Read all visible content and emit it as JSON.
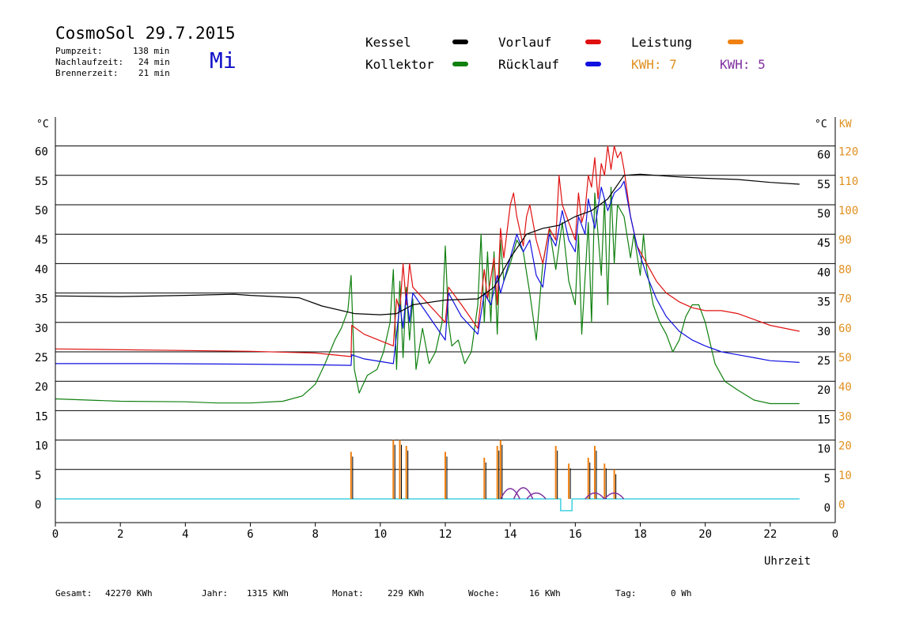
{
  "header": {
    "title": "CosmoSol 29.7.2015",
    "weekday": "Mi",
    "stats": [
      {
        "label": "Pumpzeit:",
        "value": "138 min"
      },
      {
        "label": "Nachlaufzeit:",
        "value": "24 min"
      },
      {
        "label": "Brennerzeit:",
        "value": "21 min"
      }
    ]
  },
  "legend": {
    "kessel": {
      "label": "Kessel",
      "color": "#000000"
    },
    "vorlauf": {
      "label": "Vorlauf",
      "color": "#e01010"
    },
    "leistung": {
      "label": "Leistung",
      "color": "#f08010"
    },
    "kollektor": {
      "label": "Kollektor",
      "color": "#108010"
    },
    "ruecklauf": {
      "label": "Rücklauf",
      "color": "#1010e0"
    },
    "kwh1": {
      "label": "KWH: 7",
      "color": "#e09020"
    },
    "kwh2": {
      "label": "KWH: 5",
      "color": "#8030a0"
    }
  },
  "footer": [
    {
      "label": "Gesamt:",
      "value": "42270 KWh"
    },
    {
      "label": "Jahr:",
      "value": "1315 KWh"
    },
    {
      "label": "Monat:",
      "value": "229 KWh"
    },
    {
      "label": "Woche:",
      "value": "16 KWh"
    },
    {
      "label": "Tag:",
      "value": "0 Wh"
    }
  ],
  "chart_data": {
    "type": "line",
    "xlabel": "Uhrzeit",
    "ylabel_left": "°C",
    "ylabel_right_1": "°C",
    "ylabel_right_2": "KW",
    "xlim": [
      0,
      24
    ],
    "ylim": [
      -4,
      65
    ],
    "x_ticks": [
      0,
      2,
      4,
      6,
      8,
      10,
      12,
      14,
      16,
      18,
      20,
      22
    ],
    "x_end_tick": "0",
    "y_ticks": [
      0,
      5,
      10,
      15,
      20,
      25,
      30,
      35,
      40,
      45,
      50,
      55,
      60
    ],
    "kw_ticks": [
      0,
      10,
      20,
      30,
      40,
      50,
      60,
      70,
      80,
      90,
      100,
      110,
      120
    ],
    "grid": true,
    "series": [
      {
        "key": "kollektor",
        "color": "#108010",
        "points": [
          [
            0,
            17
          ],
          [
            2,
            16.6
          ],
          [
            4,
            16.5
          ],
          [
            5,
            16.3
          ],
          [
            6,
            16.3
          ],
          [
            7,
            16.6
          ],
          [
            7.6,
            17.5
          ],
          [
            8,
            19.5
          ],
          [
            8.3,
            23
          ],
          [
            8.6,
            27
          ],
          [
            8.8,
            29
          ],
          [
            9.0,
            32
          ],
          [
            9.1,
            38
          ],
          [
            9.2,
            22
          ],
          [
            9.35,
            18
          ],
          [
            9.6,
            21
          ],
          [
            9.9,
            22
          ],
          [
            10.1,
            25
          ],
          [
            10.3,
            30
          ],
          [
            10.4,
            39
          ],
          [
            10.5,
            22
          ],
          [
            10.6,
            37
          ],
          [
            10.7,
            24
          ],
          [
            10.8,
            36
          ],
          [
            10.9,
            27
          ],
          [
            11.0,
            34
          ],
          [
            11.1,
            22
          ],
          [
            11.3,
            29
          ],
          [
            11.5,
            23
          ],
          [
            11.7,
            25
          ],
          [
            11.9,
            30
          ],
          [
            12.0,
            43
          ],
          [
            12.1,
            30
          ],
          [
            12.2,
            26
          ],
          [
            12.4,
            27
          ],
          [
            12.6,
            23
          ],
          [
            12.8,
            25
          ],
          [
            13.0,
            33
          ],
          [
            13.1,
            45
          ],
          [
            13.2,
            30
          ],
          [
            13.3,
            42
          ],
          [
            13.4,
            30
          ],
          [
            13.5,
            42
          ],
          [
            13.6,
            28
          ],
          [
            13.7,
            44
          ],
          [
            13.8,
            37
          ],
          [
            14.0,
            40
          ],
          [
            14.2,
            44
          ],
          [
            14.4,
            42
          ],
          [
            14.6,
            35
          ],
          [
            14.8,
            27
          ],
          [
            15.0,
            40
          ],
          [
            15.2,
            46
          ],
          [
            15.4,
            39
          ],
          [
            15.6,
            47
          ],
          [
            15.8,
            37
          ],
          [
            16.0,
            33
          ],
          [
            16.1,
            45
          ],
          [
            16.2,
            28
          ],
          [
            16.4,
            47
          ],
          [
            16.5,
            30
          ],
          [
            16.6,
            52
          ],
          [
            16.8,
            38
          ],
          [
            16.9,
            51
          ],
          [
            17.0,
            33
          ],
          [
            17.1,
            53
          ],
          [
            17.2,
            40
          ],
          [
            17.3,
            50
          ],
          [
            17.5,
            48
          ],
          [
            17.7,
            41
          ],
          [
            17.8,
            45
          ],
          [
            18.0,
            38
          ],
          [
            18.1,
            45
          ],
          [
            18.2,
            39
          ],
          [
            18.4,
            33
          ],
          [
            18.6,
            30
          ],
          [
            18.8,
            28
          ],
          [
            19.0,
            25
          ],
          [
            19.2,
            27
          ],
          [
            19.4,
            31
          ],
          [
            19.6,
            33
          ],
          [
            19.8,
            33
          ],
          [
            20.0,
            30
          ],
          [
            20.3,
            23
          ],
          [
            20.6,
            20
          ],
          [
            21.0,
            18.5
          ],
          [
            21.5,
            16.8
          ],
          [
            22,
            16.2
          ],
          [
            22.9,
            16.2
          ]
        ]
      },
      {
        "key": "vorlauf",
        "color": "#e01010",
        "points": [
          [
            0,
            25.5
          ],
          [
            3,
            25.3
          ],
          [
            6,
            25.1
          ],
          [
            8,
            24.8
          ],
          [
            9.1,
            24.2
          ],
          [
            9.12,
            29.5
          ],
          [
            9.5,
            28
          ],
          [
            10.4,
            26
          ],
          [
            10.5,
            34
          ],
          [
            10.6,
            32
          ],
          [
            10.7,
            40
          ],
          [
            10.8,
            33
          ],
          [
            10.9,
            40
          ],
          [
            11.0,
            36
          ],
          [
            11.5,
            33
          ],
          [
            12.0,
            30
          ],
          [
            12.1,
            36
          ],
          [
            12.5,
            33
          ],
          [
            13.0,
            29
          ],
          [
            13.2,
            39
          ],
          [
            13.3,
            34
          ],
          [
            13.5,
            41
          ],
          [
            13.6,
            33
          ],
          [
            13.7,
            46
          ],
          [
            13.8,
            41
          ],
          [
            14.0,
            50
          ],
          [
            14.1,
            52
          ],
          [
            14.2,
            48
          ],
          [
            14.4,
            43
          ],
          [
            14.5,
            48
          ],
          [
            14.6,
            50
          ],
          [
            14.8,
            44
          ],
          [
            15.0,
            40
          ],
          [
            15.2,
            46
          ],
          [
            15.4,
            44
          ],
          [
            15.5,
            55
          ],
          [
            15.6,
            50
          ],
          [
            15.8,
            47
          ],
          [
            16.0,
            44
          ],
          [
            16.1,
            52
          ],
          [
            16.2,
            47
          ],
          [
            16.3,
            49
          ],
          [
            16.4,
            55
          ],
          [
            16.5,
            53
          ],
          [
            16.6,
            58
          ],
          [
            16.7,
            51
          ],
          [
            16.8,
            57
          ],
          [
            16.9,
            55
          ],
          [
            17.0,
            60
          ],
          [
            17.1,
            56
          ],
          [
            17.2,
            60
          ],
          [
            17.3,
            58
          ],
          [
            17.4,
            59
          ],
          [
            17.5,
            56
          ],
          [
            17.7,
            48
          ],
          [
            17.9,
            43
          ],
          [
            18.2,
            40
          ],
          [
            18.5,
            37
          ],
          [
            18.8,
            35
          ],
          [
            19.2,
            33.5
          ],
          [
            19.6,
            32.5
          ],
          [
            20,
            32
          ],
          [
            20.5,
            32
          ],
          [
            21,
            31.5
          ],
          [
            21.5,
            30.5
          ],
          [
            22,
            29.5
          ],
          [
            22.9,
            28.5
          ]
        ]
      },
      {
        "key": "ruecklauf",
        "color": "#1010e0",
        "points": [
          [
            0,
            23
          ],
          [
            3,
            23
          ],
          [
            6,
            22.9
          ],
          [
            8,
            22.8
          ],
          [
            9.1,
            22.7
          ],
          [
            9.12,
            24.5
          ],
          [
            9.5,
            23.8
          ],
          [
            10.4,
            23
          ],
          [
            10.5,
            28
          ],
          [
            10.6,
            33
          ],
          [
            10.7,
            29
          ],
          [
            10.8,
            35
          ],
          [
            10.9,
            30
          ],
          [
            11.0,
            35
          ],
          [
            11.5,
            31
          ],
          [
            12.0,
            27
          ],
          [
            12.1,
            35
          ],
          [
            12.5,
            31
          ],
          [
            13.0,
            28
          ],
          [
            13.2,
            35
          ],
          [
            13.4,
            33
          ],
          [
            13.6,
            38
          ],
          [
            13.7,
            35
          ],
          [
            14.0,
            41
          ],
          [
            14.2,
            45
          ],
          [
            14.4,
            42
          ],
          [
            14.6,
            44
          ],
          [
            14.8,
            38
          ],
          [
            15.0,
            36
          ],
          [
            15.2,
            45
          ],
          [
            15.4,
            43
          ],
          [
            15.6,
            49
          ],
          [
            15.8,
            44
          ],
          [
            16.0,
            42
          ],
          [
            16.1,
            48
          ],
          [
            16.3,
            45
          ],
          [
            16.4,
            51
          ],
          [
            16.6,
            46
          ],
          [
            16.8,
            53
          ],
          [
            17.0,
            49
          ],
          [
            17.2,
            52
          ],
          [
            17.4,
            53
          ],
          [
            17.5,
            54
          ],
          [
            17.7,
            48
          ],
          [
            17.9,
            43
          ],
          [
            18.2,
            38
          ],
          [
            18.5,
            34
          ],
          [
            18.8,
            31
          ],
          [
            19.2,
            28.5
          ],
          [
            19.6,
            27
          ],
          [
            20,
            26
          ],
          [
            20.5,
            25
          ],
          [
            21,
            24.5
          ],
          [
            21.5,
            24
          ],
          [
            22,
            23.5
          ],
          [
            22.9,
            23.2
          ]
        ]
      },
      {
        "key": "kessel",
        "color": "#000000",
        "points": [
          [
            0,
            34.5
          ],
          [
            2,
            34.4
          ],
          [
            4,
            34.6
          ],
          [
            5.5,
            34.8
          ],
          [
            6,
            34.6
          ],
          [
            7.5,
            34.2
          ],
          [
            8.0,
            33.2
          ],
          [
            8.2,
            32.8
          ],
          [
            9.2,
            31.5
          ],
          [
            10,
            31.3
          ],
          [
            10.5,
            31.5
          ],
          [
            11,
            33
          ],
          [
            12,
            33.8
          ],
          [
            13,
            34
          ],
          [
            13.5,
            36
          ],
          [
            14,
            41
          ],
          [
            14.5,
            45
          ],
          [
            15,
            46
          ],
          [
            15.5,
            46.5
          ],
          [
            16,
            48
          ],
          [
            16.5,
            49
          ],
          [
            17,
            51
          ],
          [
            17.5,
            55
          ],
          [
            18,
            55.2
          ],
          [
            19,
            54.8
          ],
          [
            20,
            54.5
          ],
          [
            21,
            54.3
          ],
          [
            22,
            53.8
          ],
          [
            22.9,
            53.5
          ]
        ]
      }
    ],
    "power_kw": {
      "key": "leistung",
      "color": "#f08010",
      "overlay_color": "#8030a0",
      "unit": "KW",
      "spikes": [
        [
          9.1,
          8
        ],
        [
          10.4,
          10
        ],
        [
          10.6,
          10
        ],
        [
          10.8,
          9
        ],
        [
          12.0,
          8
        ],
        [
          13.2,
          7
        ],
        [
          13.6,
          9
        ],
        [
          13.7,
          10
        ],
        [
          15.4,
          9
        ],
        [
          15.8,
          6
        ],
        [
          16.4,
          7
        ],
        [
          16.6,
          9
        ],
        [
          16.9,
          6
        ],
        [
          17.2,
          5
        ]
      ],
      "bumps": [
        [
          14.0,
          3.5
        ],
        [
          14.4,
          3.8
        ],
        [
          14.8,
          2
        ],
        [
          16.6,
          2
        ],
        [
          17.2,
          2
        ]
      ],
      "baseline_color": "#40d0e0",
      "baseline_dip": [
        15.55,
        15.9,
        -2
      ]
    }
  }
}
